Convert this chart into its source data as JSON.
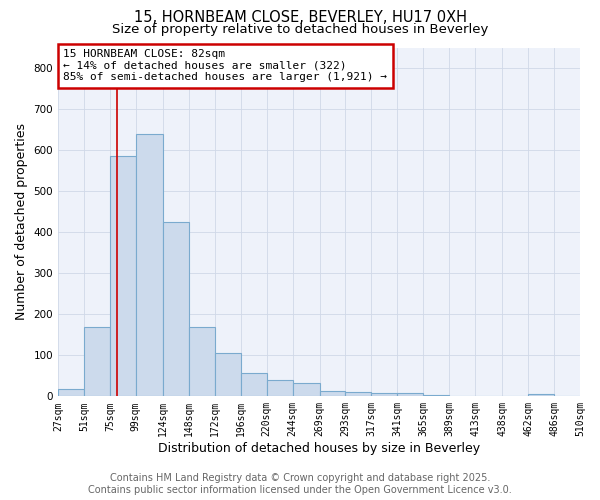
{
  "title_line1": "15, HORNBEAM CLOSE, BEVERLEY, HU17 0XH",
  "title_line2": "Size of property relative to detached houses in Beverley",
  "xlabel": "Distribution of detached houses by size in Beverley",
  "ylabel": "Number of detached properties",
  "bar_edges": [
    27,
    51,
    75,
    99,
    124,
    148,
    172,
    196,
    220,
    244,
    269,
    293,
    317,
    341,
    365,
    389,
    413,
    438,
    462,
    486,
    510
  ],
  "bar_heights": [
    18,
    168,
    585,
    640,
    425,
    170,
    105,
    57,
    40,
    33,
    14,
    11,
    9,
    8,
    4,
    2,
    2,
    1,
    6,
    0
  ],
  "bar_facecolor": "#ccdaec",
  "bar_edgecolor": "#7aaace",
  "bar_linewidth": 0.8,
  "grid_color": "#d0d8e8",
  "plot_bg_color": "#eef2fa",
  "fig_bg_color": "#ffffff",
  "red_line_x": 82,
  "red_line_color": "#cc0000",
  "annotation_line1": "15 HORNBEAM CLOSE: 82sqm",
  "annotation_line2": "← 14% of detached houses are smaller (322)",
  "annotation_line3": "85% of semi-detached houses are larger (1,921) →",
  "annotation_box_color": "#cc0000",
  "ylim": [
    0,
    850
  ],
  "yticks": [
    0,
    100,
    200,
    300,
    400,
    500,
    600,
    700,
    800
  ],
  "xtick_labels": [
    "27sqm",
    "51sqm",
    "75sqm",
    "99sqm",
    "124sqm",
    "148sqm",
    "172sqm",
    "196sqm",
    "220sqm",
    "244sqm",
    "269sqm",
    "293sqm",
    "317sqm",
    "341sqm",
    "365sqm",
    "389sqm",
    "413sqm",
    "438sqm",
    "462sqm",
    "486sqm",
    "510sqm"
  ],
  "footer_line1": "Contains HM Land Registry data © Crown copyright and database right 2025.",
  "footer_line2": "Contains public sector information licensed under the Open Government Licence v3.0.",
  "title_fontsize": 10.5,
  "subtitle_fontsize": 9.5,
  "axis_label_fontsize": 9,
  "tick_fontsize": 7,
  "annotation_fontsize": 8,
  "footer_fontsize": 7
}
